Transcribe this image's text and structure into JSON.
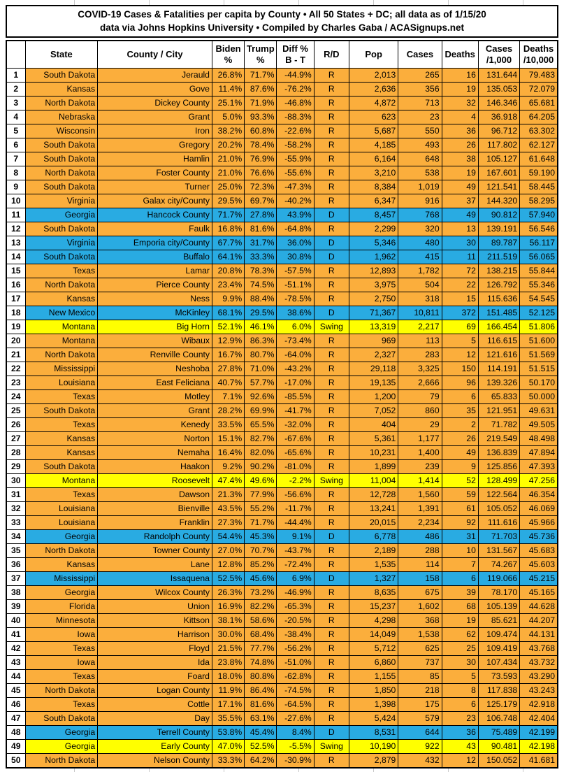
{
  "title": {
    "line1": "COVID-19 Cases & Fatalities per capita by County • All 50 States + DC; all data as of 1/15/20",
    "line2": "data via Johns Hopkins University • Compiled by Charles Gaba / ACASignups.net"
  },
  "colors": {
    "row_fill": {
      "R": "#FBAE3C",
      "D": "#29ABE2",
      "Swing": "#FFFF00"
    },
    "grid": "#000000",
    "header_bg": "#FFFFFF"
  },
  "table": {
    "columns": {
      "rank": "",
      "state": "State",
      "county": "County / City",
      "biden": "Biden\n%",
      "trump": "Trump\n%",
      "diff": "Diff %\nB - T",
      "party": "R/D",
      "pop": "Pop",
      "cases": "Cases",
      "deaths": "Deaths",
      "cases_per_1000": "Cases\n/1,000",
      "deaths_per_10000": "Deaths\n/10,000"
    },
    "rows": [
      {
        "rank": "1",
        "state": "South Dakota",
        "county": "Jerauld",
        "biden": "26.8%",
        "trump": "71.7%",
        "diff": "-44.9%",
        "party": "R",
        "pop": "2,013",
        "cases": "265",
        "deaths": "16",
        "cases_per_1000": "131.644",
        "deaths_per_10000": "79.483"
      },
      {
        "rank": "2",
        "state": "Kansas",
        "county": "Gove",
        "biden": "11.4%",
        "trump": "87.6%",
        "diff": "-76.2%",
        "party": "R",
        "pop": "2,636",
        "cases": "356",
        "deaths": "19",
        "cases_per_1000": "135.053",
        "deaths_per_10000": "72.079"
      },
      {
        "rank": "3",
        "state": "North Dakota",
        "county": "Dickey County",
        "biden": "25.1%",
        "trump": "71.9%",
        "diff": "-46.8%",
        "party": "R",
        "pop": "4,872",
        "cases": "713",
        "deaths": "32",
        "cases_per_1000": "146.346",
        "deaths_per_10000": "65.681"
      },
      {
        "rank": "4",
        "state": "Nebraska",
        "county": "Grant",
        "biden": "5.0%",
        "trump": "93.3%",
        "diff": "-88.3%",
        "party": "R",
        "pop": "623",
        "cases": "23",
        "deaths": "4",
        "cases_per_1000": "36.918",
        "deaths_per_10000": "64.205"
      },
      {
        "rank": "5",
        "state": "Wisconsin",
        "county": "Iron",
        "biden": "38.2%",
        "trump": "60.8%",
        "diff": "-22.6%",
        "party": "R",
        "pop": "5,687",
        "cases": "550",
        "deaths": "36",
        "cases_per_1000": "96.712",
        "deaths_per_10000": "63.302"
      },
      {
        "rank": "6",
        "state": "South Dakota",
        "county": "Gregory",
        "biden": "20.2%",
        "trump": "78.4%",
        "diff": "-58.2%",
        "party": "R",
        "pop": "4,185",
        "cases": "493",
        "deaths": "26",
        "cases_per_1000": "117.802",
        "deaths_per_10000": "62.127"
      },
      {
        "rank": "7",
        "state": "South Dakota",
        "county": "Hamlin",
        "biden": "21.0%",
        "trump": "76.9%",
        "diff": "-55.9%",
        "party": "R",
        "pop": "6,164",
        "cases": "648",
        "deaths": "38",
        "cases_per_1000": "105.127",
        "deaths_per_10000": "61.648"
      },
      {
        "rank": "8",
        "state": "North Dakota",
        "county": "Foster County",
        "biden": "21.0%",
        "trump": "76.6%",
        "diff": "-55.6%",
        "party": "R",
        "pop": "3,210",
        "cases": "538",
        "deaths": "19",
        "cases_per_1000": "167.601",
        "deaths_per_10000": "59.190"
      },
      {
        "rank": "9",
        "state": "South Dakota",
        "county": "Turner",
        "biden": "25.0%",
        "trump": "72.3%",
        "diff": "-47.3%",
        "party": "R",
        "pop": "8,384",
        "cases": "1,019",
        "deaths": "49",
        "cases_per_1000": "121.541",
        "deaths_per_10000": "58.445"
      },
      {
        "rank": "10",
        "state": "Virginia",
        "county": "Galax city/County",
        "biden": "29.5%",
        "trump": "69.7%",
        "diff": "-40.2%",
        "party": "R",
        "pop": "6,347",
        "cases": "916",
        "deaths": "37",
        "cases_per_1000": "144.320",
        "deaths_per_10000": "58.295"
      },
      {
        "rank": "11",
        "state": "Georgia",
        "county": "Hancock County",
        "biden": "71.7%",
        "trump": "27.8%",
        "diff": "43.9%",
        "party": "D",
        "pop": "8,457",
        "cases": "768",
        "deaths": "49",
        "cases_per_1000": "90.812",
        "deaths_per_10000": "57.940"
      },
      {
        "rank": "12",
        "state": "South Dakota",
        "county": "Faulk",
        "biden": "16.8%",
        "trump": "81.6%",
        "diff": "-64.8%",
        "party": "R",
        "pop": "2,299",
        "cases": "320",
        "deaths": "13",
        "cases_per_1000": "139.191",
        "deaths_per_10000": "56.546"
      },
      {
        "rank": "13",
        "state": "Virginia",
        "county": "Emporia city/County",
        "biden": "67.7%",
        "trump": "31.7%",
        "diff": "36.0%",
        "party": "D",
        "pop": "5,346",
        "cases": "480",
        "deaths": "30",
        "cases_per_1000": "89.787",
        "deaths_per_10000": "56.117"
      },
      {
        "rank": "14",
        "state": "South Dakota",
        "county": "Buffalo",
        "biden": "64.1%",
        "trump": "33.3%",
        "diff": "30.8%",
        "party": "D",
        "pop": "1,962",
        "cases": "415",
        "deaths": "11",
        "cases_per_1000": "211.519",
        "deaths_per_10000": "56.065"
      },
      {
        "rank": "15",
        "state": "Texas",
        "county": "Lamar",
        "biden": "20.8%",
        "trump": "78.3%",
        "diff": "-57.5%",
        "party": "R",
        "pop": "12,893",
        "cases": "1,782",
        "deaths": "72",
        "cases_per_1000": "138.215",
        "deaths_per_10000": "55.844"
      },
      {
        "rank": "16",
        "state": "North Dakota",
        "county": "Pierce County",
        "biden": "23.4%",
        "trump": "74.5%",
        "diff": "-51.1%",
        "party": "R",
        "pop": "3,975",
        "cases": "504",
        "deaths": "22",
        "cases_per_1000": "126.792",
        "deaths_per_10000": "55.346"
      },
      {
        "rank": "17",
        "state": "Kansas",
        "county": "Ness",
        "biden": "9.9%",
        "trump": "88.4%",
        "diff": "-78.5%",
        "party": "R",
        "pop": "2,750",
        "cases": "318",
        "deaths": "15",
        "cases_per_1000": "115.636",
        "deaths_per_10000": "54.545"
      },
      {
        "rank": "18",
        "state": "New Mexico",
        "county": "McKinley",
        "biden": "68.1%",
        "trump": "29.5%",
        "diff": "38.6%",
        "party": "D",
        "pop": "71,367",
        "cases": "10,811",
        "deaths": "372",
        "cases_per_1000": "151.485",
        "deaths_per_10000": "52.125"
      },
      {
        "rank": "19",
        "state": "Montana",
        "county": "Big Horn",
        "biden": "52.1%",
        "trump": "46.1%",
        "diff": "6.0%",
        "party": "Swing",
        "pop": "13,319",
        "cases": "2,217",
        "deaths": "69",
        "cases_per_1000": "166.454",
        "deaths_per_10000": "51.806"
      },
      {
        "rank": "20",
        "state": "Montana",
        "county": "Wibaux",
        "biden": "12.9%",
        "trump": "86.3%",
        "diff": "-73.4%",
        "party": "R",
        "pop": "969",
        "cases": "113",
        "deaths": "5",
        "cases_per_1000": "116.615",
        "deaths_per_10000": "51.600"
      },
      {
        "rank": "21",
        "state": "North Dakota",
        "county": "Renville County",
        "biden": "16.7%",
        "trump": "80.7%",
        "diff": "-64.0%",
        "party": "R",
        "pop": "2,327",
        "cases": "283",
        "deaths": "12",
        "cases_per_1000": "121.616",
        "deaths_per_10000": "51.569"
      },
      {
        "rank": "22",
        "state": "Mississippi",
        "county": "Neshoba",
        "biden": "27.8%",
        "trump": "71.0%",
        "diff": "-43.2%",
        "party": "R",
        "pop": "29,118",
        "cases": "3,325",
        "deaths": "150",
        "cases_per_1000": "114.191",
        "deaths_per_10000": "51.515"
      },
      {
        "rank": "23",
        "state": "Louisiana",
        "county": "East Feliciana",
        "biden": "40.7%",
        "trump": "57.7%",
        "diff": "-17.0%",
        "party": "R",
        "pop": "19,135",
        "cases": "2,666",
        "deaths": "96",
        "cases_per_1000": "139.326",
        "deaths_per_10000": "50.170"
      },
      {
        "rank": "24",
        "state": "Texas",
        "county": "Motley",
        "biden": "7.1%",
        "trump": "92.6%",
        "diff": "-85.5%",
        "party": "R",
        "pop": "1,200",
        "cases": "79",
        "deaths": "6",
        "cases_per_1000": "65.833",
        "deaths_per_10000": "50.000"
      },
      {
        "rank": "25",
        "state": "South Dakota",
        "county": "Grant",
        "biden": "28.2%",
        "trump": "69.9%",
        "diff": "-41.7%",
        "party": "R",
        "pop": "7,052",
        "cases": "860",
        "deaths": "35",
        "cases_per_1000": "121.951",
        "deaths_per_10000": "49.631"
      },
      {
        "rank": "26",
        "state": "Texas",
        "county": "Kenedy",
        "biden": "33.5%",
        "trump": "65.5%",
        "diff": "-32.0%",
        "party": "R",
        "pop": "404",
        "cases": "29",
        "deaths": "2",
        "cases_per_1000": "71.782",
        "deaths_per_10000": "49.505"
      },
      {
        "rank": "27",
        "state": "Kansas",
        "county": "Norton",
        "biden": "15.1%",
        "trump": "82.7%",
        "diff": "-67.6%",
        "party": "R",
        "pop": "5,361",
        "cases": "1,177",
        "deaths": "26",
        "cases_per_1000": "219.549",
        "deaths_per_10000": "48.498"
      },
      {
        "rank": "28",
        "state": "Kansas",
        "county": "Nemaha",
        "biden": "16.4%",
        "trump": "82.0%",
        "diff": "-65.6%",
        "party": "R",
        "pop": "10,231",
        "cases": "1,400",
        "deaths": "49",
        "cases_per_1000": "136.839",
        "deaths_per_10000": "47.894"
      },
      {
        "rank": "29",
        "state": "South Dakota",
        "county": "Haakon",
        "biden": "9.2%",
        "trump": "90.2%",
        "diff": "-81.0%",
        "party": "R",
        "pop": "1,899",
        "cases": "239",
        "deaths": "9",
        "cases_per_1000": "125.856",
        "deaths_per_10000": "47.393"
      },
      {
        "rank": "30",
        "state": "Montana",
        "county": "Roosevelt",
        "biden": "47.4%",
        "trump": "49.6%",
        "diff": "-2.2%",
        "party": "Swing",
        "pop": "11,004",
        "cases": "1,414",
        "deaths": "52",
        "cases_per_1000": "128.499",
        "deaths_per_10000": "47.256"
      },
      {
        "rank": "31",
        "state": "Texas",
        "county": "Dawson",
        "biden": "21.3%",
        "trump": "77.9%",
        "diff": "-56.6%",
        "party": "R",
        "pop": "12,728",
        "cases": "1,560",
        "deaths": "59",
        "cases_per_1000": "122.564",
        "deaths_per_10000": "46.354"
      },
      {
        "rank": "32",
        "state": "Louisiana",
        "county": "Bienville",
        "biden": "43.5%",
        "trump": "55.2%",
        "diff": "-11.7%",
        "party": "R",
        "pop": "13,241",
        "cases": "1,391",
        "deaths": "61",
        "cases_per_1000": "105.052",
        "deaths_per_10000": "46.069"
      },
      {
        "rank": "33",
        "state": "Louisiana",
        "county": "Franklin",
        "biden": "27.3%",
        "trump": "71.7%",
        "diff": "-44.4%",
        "party": "R",
        "pop": "20,015",
        "cases": "2,234",
        "deaths": "92",
        "cases_per_1000": "111.616",
        "deaths_per_10000": "45.966"
      },
      {
        "rank": "34",
        "state": "Georgia",
        "county": "Randolph County",
        "biden": "54.4%",
        "trump": "45.3%",
        "diff": "9.1%",
        "party": "D",
        "pop": "6,778",
        "cases": "486",
        "deaths": "31",
        "cases_per_1000": "71.703",
        "deaths_per_10000": "45.736"
      },
      {
        "rank": "35",
        "state": "North Dakota",
        "county": "Towner County",
        "biden": "27.0%",
        "trump": "70.7%",
        "diff": "-43.7%",
        "party": "R",
        "pop": "2,189",
        "cases": "288",
        "deaths": "10",
        "cases_per_1000": "131.567",
        "deaths_per_10000": "45.683"
      },
      {
        "rank": "36",
        "state": "Kansas",
        "county": "Lane",
        "biden": "12.8%",
        "trump": "85.2%",
        "diff": "-72.4%",
        "party": "R",
        "pop": "1,535",
        "cases": "114",
        "deaths": "7",
        "cases_per_1000": "74.267",
        "deaths_per_10000": "45.603"
      },
      {
        "rank": "37",
        "state": "Mississippi",
        "county": "Issaquena",
        "biden": "52.5%",
        "trump": "45.6%",
        "diff": "6.9%",
        "party": "D",
        "pop": "1,327",
        "cases": "158",
        "deaths": "6",
        "cases_per_1000": "119.066",
        "deaths_per_10000": "45.215"
      },
      {
        "rank": "38",
        "state": "Georgia",
        "county": "Wilcox County",
        "biden": "26.3%",
        "trump": "73.2%",
        "diff": "-46.9%",
        "party": "R",
        "pop": "8,635",
        "cases": "675",
        "deaths": "39",
        "cases_per_1000": "78.170",
        "deaths_per_10000": "45.165"
      },
      {
        "rank": "39",
        "state": "Florida",
        "county": "Union",
        "biden": "16.9%",
        "trump": "82.2%",
        "diff": "-65.3%",
        "party": "R",
        "pop": "15,237",
        "cases": "1,602",
        "deaths": "68",
        "cases_per_1000": "105.139",
        "deaths_per_10000": "44.628"
      },
      {
        "rank": "40",
        "state": "Minnesota",
        "county": "Kittson",
        "biden": "38.1%",
        "trump": "58.6%",
        "diff": "-20.5%",
        "party": "R",
        "pop": "4,298",
        "cases": "368",
        "deaths": "19",
        "cases_per_1000": "85.621",
        "deaths_per_10000": "44.207"
      },
      {
        "rank": "41",
        "state": "Iowa",
        "county": "Harrison",
        "biden": "30.0%",
        "trump": "68.4%",
        "diff": "-38.4%",
        "party": "R",
        "pop": "14,049",
        "cases": "1,538",
        "deaths": "62",
        "cases_per_1000": "109.474",
        "deaths_per_10000": "44.131"
      },
      {
        "rank": "42",
        "state": "Texas",
        "county": "Floyd",
        "biden": "21.5%",
        "trump": "77.7%",
        "diff": "-56.2%",
        "party": "R",
        "pop": "5,712",
        "cases": "625",
        "deaths": "25",
        "cases_per_1000": "109.419",
        "deaths_per_10000": "43.768"
      },
      {
        "rank": "43",
        "state": "Iowa",
        "county": "Ida",
        "biden": "23.8%",
        "trump": "74.8%",
        "diff": "-51.0%",
        "party": "R",
        "pop": "6,860",
        "cases": "737",
        "deaths": "30",
        "cases_per_1000": "107.434",
        "deaths_per_10000": "43.732"
      },
      {
        "rank": "44",
        "state": "Texas",
        "county": "Foard",
        "biden": "18.0%",
        "trump": "80.8%",
        "diff": "-62.8%",
        "party": "R",
        "pop": "1,155",
        "cases": "85",
        "deaths": "5",
        "cases_per_1000": "73.593",
        "deaths_per_10000": "43.290"
      },
      {
        "rank": "45",
        "state": "North Dakota",
        "county": "Logan County",
        "biden": "11.9%",
        "trump": "86.4%",
        "diff": "-74.5%",
        "party": "R",
        "pop": "1,850",
        "cases": "218",
        "deaths": "8",
        "cases_per_1000": "117.838",
        "deaths_per_10000": "43.243"
      },
      {
        "rank": "46",
        "state": "Texas",
        "county": "Cottle",
        "biden": "17.1%",
        "trump": "81.6%",
        "diff": "-64.5%",
        "party": "R",
        "pop": "1,398",
        "cases": "175",
        "deaths": "6",
        "cases_per_1000": "125.179",
        "deaths_per_10000": "42.918"
      },
      {
        "rank": "47",
        "state": "South Dakota",
        "county": "Day",
        "biden": "35.5%",
        "trump": "63.1%",
        "diff": "-27.6%",
        "party": "R",
        "pop": "5,424",
        "cases": "579",
        "deaths": "23",
        "cases_per_1000": "106.748",
        "deaths_per_10000": "42.404"
      },
      {
        "rank": "48",
        "state": "Georgia",
        "county": "Terrell County",
        "biden": "53.8%",
        "trump": "45.4%",
        "diff": "8.4%",
        "party": "D",
        "pop": "8,531",
        "cases": "644",
        "deaths": "36",
        "cases_per_1000": "75.489",
        "deaths_per_10000": "42.199"
      },
      {
        "rank": "49",
        "state": "Georgia",
        "county": "Early County",
        "biden": "47.0%",
        "trump": "52.5%",
        "diff": "-5.5%",
        "party": "Swing",
        "pop": "10,190",
        "cases": "922",
        "deaths": "43",
        "cases_per_1000": "90.481",
        "deaths_per_10000": "42.198"
      },
      {
        "rank": "50",
        "state": "North Dakota",
        "county": "Nelson County",
        "biden": "33.3%",
        "trump": "64.2%",
        "diff": "-30.9%",
        "party": "R",
        "pop": "2,879",
        "cases": "432",
        "deaths": "12",
        "cases_per_1000": "150.052",
        "deaths_per_10000": "41.681"
      }
    ]
  }
}
